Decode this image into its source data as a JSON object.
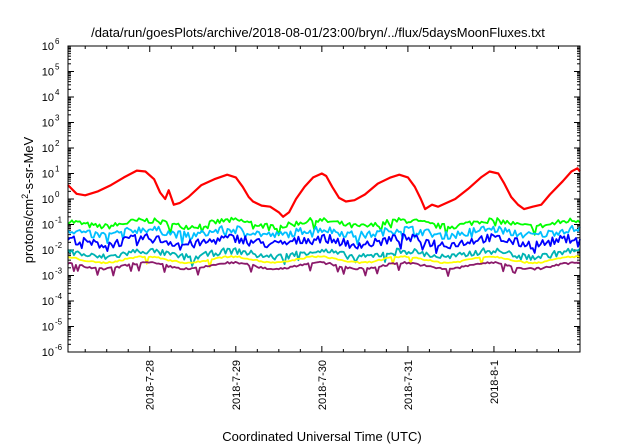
{
  "chart_data": {
    "type": "line",
    "title": "/data/run/goesPlots/archive/2018-08-01/23:00/bryn/../flux/5daysMoonFluxes.txt",
    "xlabel": "Coordinated Universal Time (UTC)",
    "ylabel": "protons/cm²-s-sr-MeV",
    "y_scale": "log",
    "ylim": [
      1e-06,
      1000000.0
    ],
    "y_ticks": [
      {
        "base": "10",
        "exp": "6"
      },
      {
        "base": "10",
        "exp": "5"
      },
      {
        "base": "10",
        "exp": "4"
      },
      {
        "base": "10",
        "exp": "3"
      },
      {
        "base": "10",
        "exp": "2"
      },
      {
        "base": "10",
        "exp": "1"
      },
      {
        "base": "10",
        "exp": "0"
      },
      {
        "base": "10",
        "exp": "-1"
      },
      {
        "base": "10",
        "exp": "-2"
      },
      {
        "base": "10",
        "exp": "-3"
      },
      {
        "base": "10",
        "exp": "-4"
      },
      {
        "base": "10",
        "exp": "-5"
      },
      {
        "base": "10",
        "exp": "-6"
      }
    ],
    "x_ticks": [
      "2018-7-28",
      "2018-7-29",
      "2018-7-30",
      "2018-7-31",
      "2018-8-1"
    ],
    "xlim_days": [
      -0.95,
      5.0
    ],
    "x_tick_days": [
      0,
      1,
      2,
      3,
      4
    ],
    "grid": false,
    "legend": "none",
    "series": [
      {
        "color": "#ff0000",
        "points": [
          [
            -0.95,
            3.5
          ],
          [
            -0.85,
            1.6
          ],
          [
            -0.75,
            1.4
          ],
          [
            -0.6,
            2.0
          ],
          [
            -0.45,
            3.5
          ],
          [
            -0.3,
            7
          ],
          [
            -0.15,
            13
          ],
          [
            -0.05,
            12
          ],
          [
            0.05,
            6
          ],
          [
            0.12,
            1.8
          ],
          [
            0.18,
            1.0
          ],
          [
            0.22,
            2.2
          ],
          [
            0.28,
            0.6
          ],
          [
            0.35,
            0.7
          ],
          [
            0.45,
            1.2
          ],
          [
            0.6,
            3.5
          ],
          [
            0.75,
            6
          ],
          [
            0.9,
            9
          ],
          [
            1.0,
            7
          ],
          [
            1.08,
            3
          ],
          [
            1.15,
            1.2
          ],
          [
            1.2,
            0.8
          ],
          [
            1.3,
            0.55
          ],
          [
            1.4,
            0.5
          ],
          [
            1.5,
            0.3
          ],
          [
            1.55,
            0.2
          ],
          [
            1.62,
            0.3
          ],
          [
            1.7,
            1.0
          ],
          [
            1.8,
            3.0
          ],
          [
            1.9,
            7
          ],
          [
            2.0,
            10
          ],
          [
            2.05,
            8
          ],
          [
            2.12,
            3
          ],
          [
            2.2,
            1.1
          ],
          [
            2.28,
            0.8
          ],
          [
            2.38,
            0.9
          ],
          [
            2.5,
            1.5
          ],
          [
            2.65,
            4
          ],
          [
            2.8,
            7
          ],
          [
            2.9,
            9
          ],
          [
            3.0,
            7
          ],
          [
            3.08,
            3
          ],
          [
            3.15,
            1.0
          ],
          [
            3.2,
            0.4
          ],
          [
            3.28,
            0.6
          ],
          [
            3.35,
            0.5
          ],
          [
            3.45,
            0.7
          ],
          [
            3.55,
            1.0
          ],
          [
            3.7,
            2.5
          ],
          [
            3.85,
            7
          ],
          [
            3.95,
            12
          ],
          [
            4.05,
            10
          ],
          [
            4.12,
            4
          ],
          [
            4.2,
            1.2
          ],
          [
            4.28,
            0.6
          ],
          [
            4.35,
            0.4
          ],
          [
            4.45,
            0.5
          ],
          [
            4.55,
            0.6
          ],
          [
            4.65,
            1.5
          ],
          [
            4.8,
            5
          ],
          [
            4.9,
            12
          ],
          [
            4.97,
            16
          ],
          [
            5.0,
            12
          ]
        ]
      },
      {
        "color": "#00ff00",
        "base": 0.11,
        "amp": 0.22,
        "period": 0.06
      },
      {
        "color": "#00bfff",
        "base": 0.05,
        "amp": 0.3,
        "period": 0.05
      },
      {
        "color": "#0000ff",
        "base": 0.022,
        "amp": 0.35,
        "period": 0.07
      },
      {
        "color": "#00b3b3",
        "base": 0.007,
        "amp": 0.25,
        "period": 0.08
      },
      {
        "color": "#ffff00",
        "base": 0.0042,
        "amp": 0.06,
        "period": 0.1
      },
      {
        "color": "#8b1a6b",
        "base": 0.0024,
        "amp": 0.08,
        "period": 0.12
      }
    ]
  }
}
